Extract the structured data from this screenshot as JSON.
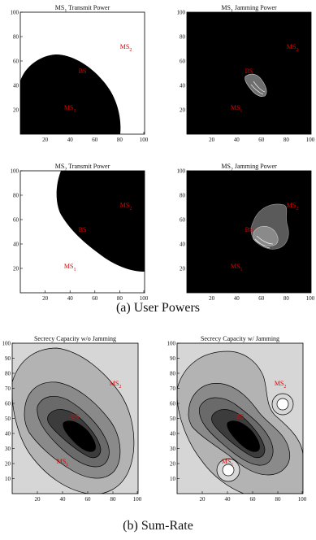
{
  "figure": {
    "caption_a": "(a) User Powers",
    "caption_b": "(b) Sum-Rate"
  },
  "chart_data": [
    {
      "type": "heatmap",
      "title": "MS1 Transmit Power",
      "title_main": "MS",
      "title_sub": "1",
      "title_rest": " Transmit Power",
      "xlim": [
        0,
        100
      ],
      "ylim": [
        0,
        100
      ],
      "xticks": [
        "20",
        "40",
        "60",
        "80",
        "100"
      ],
      "yticks": [
        "20",
        "40",
        "60",
        "80",
        "100"
      ],
      "markers": [
        {
          "name": "MS",
          "sub": "2",
          "x": 85,
          "y": 70
        },
        {
          "name": "BS",
          "sub": "",
          "x": 50,
          "y": 50
        },
        {
          "name": "MS",
          "sub": "1",
          "x": 40,
          "y": 20
        }
      ],
      "colors": {
        "low": "#ffffff",
        "high": "#000000"
      },
      "note": "black region covers lower-left, bounded roughly by x<80, y<57"
    },
    {
      "type": "heatmap",
      "title": "MS1 Jamming Power",
      "title_main": "MS",
      "title_sub": "1",
      "title_rest": " Jamming Power",
      "xlim": [
        0,
        100
      ],
      "ylim": [
        0,
        100
      ],
      "xticks": [
        "20",
        "40",
        "60",
        "80",
        "100"
      ],
      "yticks": [
        "20",
        "40",
        "60",
        "80",
        "100"
      ],
      "markers": [
        {
          "name": "MS",
          "sub": "2",
          "x": 85,
          "y": 70
        },
        {
          "name": "BS",
          "sub": "",
          "x": 50,
          "y": 50
        },
        {
          "name": "MS",
          "sub": "1",
          "x": 40,
          "y": 20
        }
      ]
    },
    {
      "type": "heatmap",
      "title": "MS2 Transmit Power",
      "title_main": "MS",
      "title_sub": "2",
      "title_rest": " Transmit Power",
      "xlim": [
        0,
        100
      ],
      "ylim": [
        0,
        100
      ],
      "xticks": [
        "20",
        "40",
        "60",
        "80",
        "100"
      ],
      "yticks": [
        "20",
        "40",
        "60",
        "80",
        "100"
      ],
      "markers": [
        {
          "name": "MS",
          "sub": "2",
          "x": 85,
          "y": 70
        },
        {
          "name": "BS",
          "sub": "",
          "x": 50,
          "y": 50
        },
        {
          "name": "MS",
          "sub": "1",
          "x": 40,
          "y": 20
        }
      ]
    },
    {
      "type": "heatmap",
      "title": "MS2 Jamming Power",
      "title_main": "MS",
      "title_sub": "2",
      "title_rest": " Jamming Power",
      "xlim": [
        0,
        100
      ],
      "ylim": [
        0,
        100
      ],
      "xticks": [
        "20",
        "40",
        "60",
        "80",
        "100"
      ],
      "yticks": [
        "20",
        "40",
        "60",
        "80",
        "100"
      ],
      "markers": [
        {
          "name": "MS",
          "sub": "2",
          "x": 85,
          "y": 70
        },
        {
          "name": "BS",
          "sub": "",
          "x": 50,
          "y": 50
        },
        {
          "name": "MS",
          "sub": "1",
          "x": 40,
          "y": 20
        }
      ]
    },
    {
      "type": "heatmap",
      "title": "Secrecy Capacity w/o Jamming",
      "title_main": "Secrecy Capacity w/o Jamming",
      "title_sub": "",
      "title_rest": "",
      "xlim": [
        0,
        100
      ],
      "ylim": [
        0,
        100
      ],
      "xticks": [
        "20",
        "40",
        "60",
        "80",
        "100"
      ],
      "yticks": [
        "10",
        "20",
        "30",
        "40",
        "50",
        "60",
        "70",
        "80",
        "90",
        "100"
      ],
      "markers": [
        {
          "name": "MS",
          "sub": "2",
          "x": 82,
          "y": 72
        },
        {
          "name": "BS",
          "sub": "",
          "x": 50,
          "y": 50
        },
        {
          "name": "MS",
          "sub": "1",
          "x": 40,
          "y": 20
        }
      ]
    },
    {
      "type": "heatmap",
      "title": "Secrecy Capacity w/ Jamming",
      "title_main": "Secrecy Capacity w/ Jamming",
      "title_sub": "",
      "title_rest": "",
      "xlim": [
        0,
        100
      ],
      "ylim": [
        0,
        100
      ],
      "xticks": [
        "20",
        "40",
        "60",
        "80",
        "100"
      ],
      "yticks": [
        "10",
        "20",
        "30",
        "40",
        "50",
        "60",
        "70",
        "80",
        "90",
        "100"
      ],
      "markers": [
        {
          "name": "MS",
          "sub": "2",
          "x": 82,
          "y": 72
        },
        {
          "name": "BS",
          "sub": "",
          "x": 50,
          "y": 50
        },
        {
          "name": "MS",
          "sub": "1",
          "x": 40,
          "y": 20
        }
      ]
    }
  ]
}
